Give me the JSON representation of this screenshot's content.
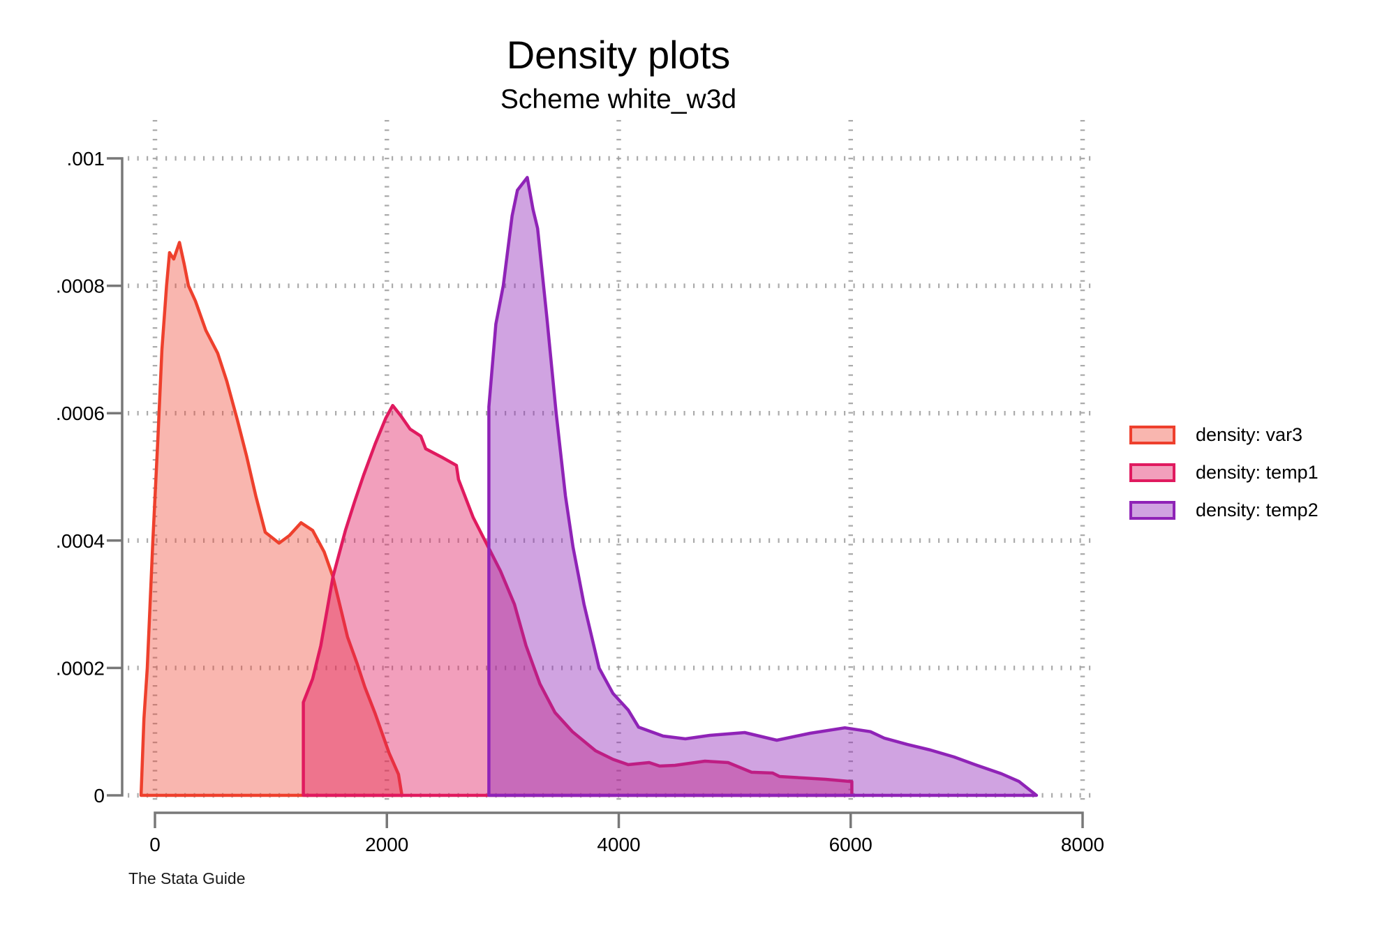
{
  "header": {
    "title": "Density plots",
    "subtitle": "Scheme white_w3d"
  },
  "caption": "The Stata Guide",
  "legend": {
    "position": "right",
    "items": [
      {
        "id": "var3",
        "label": "density: var3",
        "stroke": "#ee402d",
        "fill": "rgba(238,64,45,0.38)"
      },
      {
        "id": "temp1",
        "label": "density: temp1",
        "stroke": "#e01a5f",
        "fill": "rgba(224,26,95,0.42)"
      },
      {
        "id": "temp2",
        "label": "density: temp2",
        "stroke": "#8f23b7",
        "fill": "rgba(143,35,183,0.42)"
      }
    ]
  },
  "chart_data": {
    "type": "area",
    "subtype": "kernel-density",
    "title": "Density plots",
    "subtitle": "Scheme white_w3d",
    "xlabel": "",
    "ylabel": "",
    "xlim": [
      -280,
      8400
    ],
    "ylim": [
      0,
      0.001
    ],
    "grid": "dotted",
    "grid_color": "#a3a3a3",
    "axis_color": "#787878",
    "legend_position": "right-middle",
    "x_ticks": [
      {
        "v": 0,
        "label": "0"
      },
      {
        "v": 2000,
        "label": "2000"
      },
      {
        "v": 4000,
        "label": "4000"
      },
      {
        "v": 6000,
        "label": "6000"
      },
      {
        "v": 8000,
        "label": "8000"
      }
    ],
    "y_ticks": [
      {
        "v": 0,
        "label": "0"
      },
      {
        "v": 0.0002,
        "label": ".0002"
      },
      {
        "v": 0.0004,
        "label": ".0004"
      },
      {
        "v": 0.0006,
        "label": ".0006"
      },
      {
        "v": 0.0008,
        "label": ".0008"
      },
      {
        "v": 0.001,
        "label": ".001"
      }
    ],
    "series": [
      {
        "name": "density: var3",
        "id": "var3",
        "stroke": "#ee402d",
        "fill": "rgba(238,64,45,0.38)",
        "peak": {
          "x": 211,
          "y": 0.000868
        },
        "points": [
          [
            -120,
            0
          ],
          [
            -95,
            0.00012
          ],
          [
            -66,
            0.0002
          ],
          [
            -18,
            0.0004
          ],
          [
            25,
            0.00056
          ],
          [
            60,
            0.0007
          ],
          [
            100,
            0.0008
          ],
          [
            126,
            0.000852
          ],
          [
            162,
            0.000842
          ],
          [
            211,
            0.000868
          ],
          [
            252,
            0.000834
          ],
          [
            289,
            0.0008
          ],
          [
            349,
            0.000776
          ],
          [
            439,
            0.00073
          ],
          [
            541,
            0.000694
          ],
          [
            620,
            0.00065
          ],
          [
            710,
            0.00059
          ],
          [
            790,
            0.000533
          ],
          [
            870,
            0.00047
          ],
          [
            951,
            0.000413
          ],
          [
            1070,
            0.000396
          ],
          [
            1160,
            0.000408
          ],
          [
            1260,
            0.000428
          ],
          [
            1360,
            0.000416
          ],
          [
            1460,
            0.000382
          ],
          [
            1535,
            0.000343
          ],
          [
            1610,
            0.000287
          ],
          [
            1660,
            0.000249
          ],
          [
            1745,
            0.000206
          ],
          [
            1810,
            0.00017
          ],
          [
            1900,
            0.000128
          ],
          [
            2020,
            6.6e-05
          ],
          [
            2100,
            3.3e-05
          ],
          [
            2130,
            0
          ]
        ]
      },
      {
        "name": "density: temp1",
        "id": "temp1",
        "stroke": "#e01a5f",
        "fill": "rgba(224,26,95,0.42)",
        "peak": {
          "x": 2050,
          "y": 0.000612
        },
        "points": [
          [
            1280,
            0
          ],
          [
            1280,
            0.000146
          ],
          [
            1360,
            0.000183
          ],
          [
            1430,
            0.000235
          ],
          [
            1535,
            0.000343
          ],
          [
            1643,
            0.000416
          ],
          [
            1720,
            0.00046
          ],
          [
            1800,
            0.000503
          ],
          [
            1900,
            0.000552
          ],
          [
            1990,
            0.000592
          ],
          [
            2050,
            0.000612
          ],
          [
            2120,
            0.000596
          ],
          [
            2200,
            0.000575
          ],
          [
            2293,
            0.000564
          ],
          [
            2335,
            0.000544
          ],
          [
            2473,
            0.000531
          ],
          [
            2600,
            0.000518
          ],
          [
            2618,
            0.000496
          ],
          [
            2745,
            0.000436
          ],
          [
            2860,
            0.000395
          ],
          [
            2980,
            0.000352
          ],
          [
            3100,
            0.0003
          ],
          [
            3200,
            0.000235
          ],
          [
            3320,
            0.000175
          ],
          [
            3450,
            0.00013
          ],
          [
            3600,
            0.0001
          ],
          [
            3800,
            7e-05
          ],
          [
            3950,
            5.65e-05
          ],
          [
            4081,
            4.82e-05
          ],
          [
            4262,
            5.15e-05
          ],
          [
            4352,
            4.6e-05
          ],
          [
            4484,
            4.71e-05
          ],
          [
            4743,
            5.37e-05
          ],
          [
            4942,
            5.15e-05
          ],
          [
            5146,
            3.62e-05
          ],
          [
            5327,
            3.5e-05
          ],
          [
            5387,
            2.96e-05
          ],
          [
            5586,
            2.74e-05
          ],
          [
            5784,
            2.52e-05
          ],
          [
            5989,
            2.19e-05
          ],
          [
            6010,
            2.15e-05
          ],
          [
            6010,
            0
          ]
        ]
      },
      {
        "name": "density: temp2",
        "id": "temp2",
        "stroke": "#8f23b7",
        "fill": "rgba(143,35,183,0.42)",
        "peak": {
          "x": 3211,
          "y": 0.00097
        },
        "points": [
          [
            2880,
            0
          ],
          [
            2880,
            0.00061
          ],
          [
            2940,
            0.00074
          ],
          [
            3004,
            0.0008
          ],
          [
            3080,
            0.00091
          ],
          [
            3126,
            0.00095
          ],
          [
            3211,
            0.00097
          ],
          [
            3260,
            0.00092
          ],
          [
            3300,
            0.00089
          ],
          [
            3380,
            0.00075
          ],
          [
            3460,
            0.0006
          ],
          [
            3540,
            0.00047
          ],
          [
            3605,
            0.00039
          ],
          [
            3700,
            0.0003
          ],
          [
            3830,
            0.0002
          ],
          [
            3950,
            0.00016
          ],
          [
            4081,
            0.000134
          ],
          [
            4171,
            0.000107
          ],
          [
            4382,
            9.31e-05
          ],
          [
            4574,
            8.87e-05
          ],
          [
            4785,
            9.42e-05
          ],
          [
            5086,
            9.86e-05
          ],
          [
            5363,
            8.65e-05
          ],
          [
            5650,
            9.75e-05
          ],
          [
            5950,
            0.000106
          ],
          [
            6170,
            0.0001
          ],
          [
            6290,
            8.98e-05
          ],
          [
            6489,
            7.99e-05
          ],
          [
            6687,
            7.12e-05
          ],
          [
            6892,
            6.02e-05
          ],
          [
            7090,
            4.71e-05
          ],
          [
            7300,
            3.4e-05
          ],
          [
            7450,
            2.2e-05
          ],
          [
            7602,
            0
          ]
        ]
      }
    ]
  }
}
